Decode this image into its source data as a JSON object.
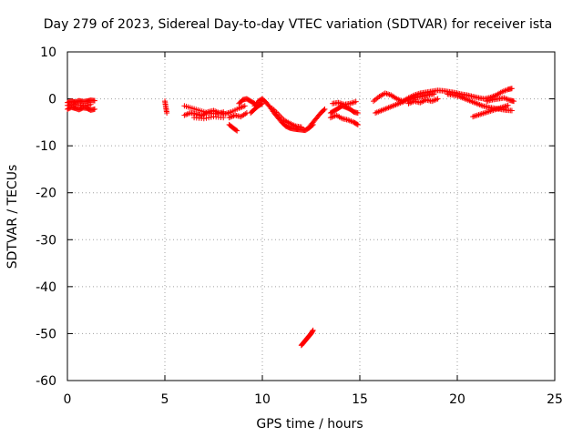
{
  "chart_data": {
    "type": "scatter",
    "title": "Day 279 of 2023, Sidereal Day-to-day VTEC variation (SDTVAR) for receiver ista",
    "xlabel": "GPS time / hours",
    "ylabel": "SDTVAR / TECUs",
    "xlim": [
      0,
      25
    ],
    "ylim": [
      -60,
      10
    ],
    "xticks": [
      0,
      5,
      10,
      15,
      20,
      25
    ],
    "yticks": [
      -60,
      -50,
      -40,
      -30,
      -20,
      -10,
      0,
      10
    ],
    "grid": true,
    "marker": "plus",
    "series": [
      {
        "name": "SDTVAR",
        "color": "#ff0000",
        "segments": [
          {
            "x": [
              0.0,
              0.2,
              0.4,
              0.6,
              0.8,
              1.0,
              1.2,
              1.4
            ],
            "y": [
              -0.8,
              -0.5,
              -0.7,
              -0.4,
              -0.6,
              -0.5,
              -0.3,
              -0.4
            ]
          },
          {
            "x": [
              0.0,
              0.2,
              0.4,
              0.6,
              0.8,
              1.0,
              1.2,
              1.4
            ],
            "y": [
              -2.2,
              -1.8,
              -2.0,
              -2.3,
              -1.9,
              -2.0,
              -2.4,
              -2.2
            ]
          },
          {
            "x": [
              0.0,
              0.3,
              0.6,
              0.9,
              1.2
            ],
            "y": [
              -1.4,
              -1.2,
              -1.3,
              -1.5,
              -1.2
            ]
          },
          {
            "x": [
              5.0,
              5.05,
              5.1
            ],
            "y": [
              -0.5,
              -1.8,
              -3.0
            ]
          },
          {
            "x": [
              6.0,
              6.3,
              6.6,
              6.9,
              7.2,
              7.5,
              7.8,
              8.1,
              8.4,
              8.8,
              9.1
            ],
            "y": [
              -3.5,
              -3.0,
              -3.2,
              -3.6,
              -2.8,
              -2.5,
              -3.0,
              -3.2,
              -2.8,
              -2.0,
              -1.5
            ]
          },
          {
            "x": [
              6.0,
              6.4,
              6.8,
              7.2,
              7.6,
              8.0
            ],
            "y": [
              -1.5,
              -2.0,
              -2.5,
              -3.0,
              -3.2,
              -2.8
            ]
          },
          {
            "x": [
              6.5,
              7.0,
              7.5,
              8.0
            ],
            "y": [
              -4.0,
              -4.2,
              -3.8,
              -4.0
            ]
          },
          {
            "x": [
              8.3,
              8.5,
              8.7
            ],
            "y": [
              -5.5,
              -6.2,
              -6.8
            ]
          },
          {
            "x": [
              8.8,
              9.0,
              9.2,
              9.4,
              9.6
            ],
            "y": [
              -1.0,
              -0.2,
              0.0,
              -0.5,
              -1.0
            ]
          },
          {
            "x": [
              8.3,
              8.6,
              8.9,
              9.2
            ],
            "y": [
              -4.0,
              -3.5,
              -3.8,
              -3.0
            ]
          },
          {
            "x": [
              9.6,
              9.8,
              10.0,
              10.2,
              10.4,
              10.6,
              10.8,
              11.0,
              11.2,
              11.4,
              11.6,
              11.8,
              12.0,
              12.2,
              12.4,
              12.6
            ],
            "y": [
              -1.5,
              -0.5,
              0.0,
              -0.8,
              -1.8,
              -3.0,
              -4.0,
              -5.0,
              -5.8,
              -6.2,
              -6.4,
              -6.5,
              -6.6,
              -6.7,
              -6.2,
              -5.5
            ]
          },
          {
            "x": [
              9.4,
              9.6,
              9.8,
              10.0
            ],
            "y": [
              -3.0,
              -2.2,
              -1.5,
              -1.0
            ]
          },
          {
            "x": [
              10.5,
              10.8,
              11.1,
              11.4,
              11.7,
              12.0
            ],
            "y": [
              -2.0,
              -3.2,
              -4.5,
              -5.2,
              -5.8,
              -6.0
            ]
          },
          {
            "x": [
              12.0,
              12.1,
              12.2,
              12.3,
              12.4,
              12.5,
              12.6
            ],
            "y": [
              -52.5,
              -52.0,
              -51.5,
              -51.0,
              -50.5,
              -50.0,
              -49.3
            ]
          },
          {
            "x": [
              12.4,
              12.6,
              12.8,
              13.0,
              13.2
            ],
            "y": [
              -6.0,
              -5.0,
              -4.0,
              -3.0,
              -2.2
            ]
          },
          {
            "x": [
              13.5,
              13.7,
              13.9,
              14.1,
              14.3,
              14.5,
              14.7,
              14.9
            ],
            "y": [
              -3.0,
              -2.5,
              -2.0,
              -1.5,
              -1.8,
              -2.2,
              -2.8,
              -3.0
            ]
          },
          {
            "x": [
              13.5,
              13.8,
              14.1,
              14.4,
              14.7,
              14.9
            ],
            "y": [
              -4.0,
              -3.5,
              -4.2,
              -4.5,
              -5.0,
              -5.5
            ]
          },
          {
            "x": [
              13.6,
              13.9,
              14.2,
              14.5,
              14.8
            ],
            "y": [
              -1.0,
              -0.8,
              -1.2,
              -1.0,
              -0.6
            ]
          },
          {
            "x": [
              15.7,
              16.0,
              16.3,
              16.6,
              16.9,
              17.2,
              17.5,
              17.8,
              18.1,
              18.4,
              18.7,
              19.0,
              19.3,
              19.6,
              19.9,
              20.2,
              20.5,
              20.8,
              21.1,
              21.4,
              21.7,
              22.0,
              22.3,
              22.6,
              22.8
            ],
            "y": [
              -0.5,
              0.5,
              1.2,
              0.8,
              0.0,
              -0.5,
              0.2,
              0.8,
              1.2,
              1.4,
              1.6,
              1.8,
              1.7,
              1.5,
              1.3,
              1.0,
              0.8,
              0.5,
              0.2,
              0.0,
              0.3,
              0.8,
              1.5,
              2.0,
              2.2
            ]
          },
          {
            "x": [
              15.8,
              16.1,
              16.4,
              16.7,
              17.0,
              17.3,
              17.6,
              17.9,
              18.2,
              18.5,
              18.8
            ],
            "y": [
              -3.0,
              -2.5,
              -2.0,
              -1.5,
              -1.0,
              -0.5,
              0.0,
              0.3,
              0.5,
              0.8,
              1.0
            ]
          },
          {
            "x": [
              17.5,
              17.8,
              18.1,
              18.4,
              18.7,
              19.0
            ],
            "y": [
              -1.0,
              -0.5,
              -0.8,
              -0.2,
              -0.5,
              0.0
            ]
          },
          {
            "x": [
              19.5,
              19.8,
              20.1,
              20.4,
              20.7,
              21.0,
              21.3,
              21.6,
              21.9,
              22.2,
              22.5,
              22.8
            ],
            "y": [
              1.0,
              0.8,
              0.5,
              0.0,
              -0.5,
              -1.0,
              -1.5,
              -1.8,
              -2.0,
              -2.2,
              -2.4,
              -2.5
            ]
          },
          {
            "x": [
              20.8,
              21.1,
              21.4,
              21.7,
              22.0,
              22.3,
              22.6
            ],
            "y": [
              -3.8,
              -3.4,
              -3.0,
              -2.6,
              -2.2,
              -1.8,
              -1.4
            ]
          },
          {
            "x": [
              21.5,
              21.8,
              22.1,
              22.4,
              22.7,
              22.9
            ],
            "y": [
              -0.5,
              -0.2,
              0.0,
              0.2,
              -0.3,
              -0.5
            ]
          }
        ]
      }
    ]
  }
}
